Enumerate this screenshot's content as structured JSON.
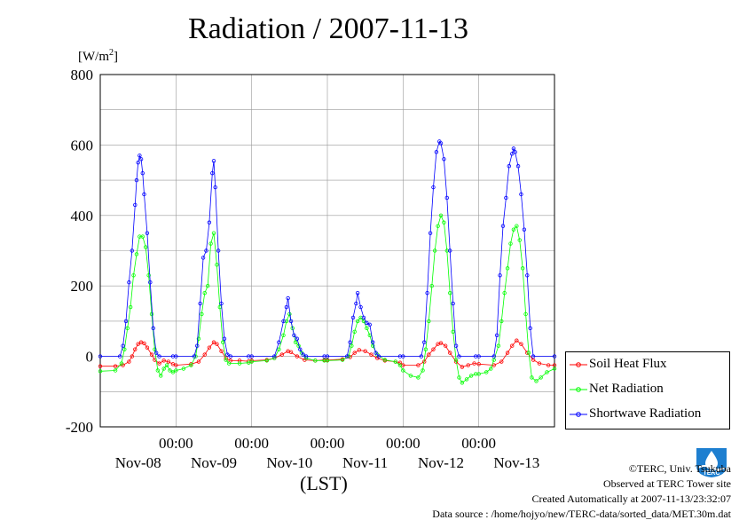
{
  "chart_data": {
    "type": "line",
    "title": "Radiation / 2007-11-13",
    "ylabel_unit": "[W/m2]",
    "xlabel": "(LST)",
    "ylim": [
      -200,
      800
    ],
    "yticks": [
      "800",
      "600",
      "400",
      "200",
      "0",
      "-200"
    ],
    "xticks_time": [
      "00:00",
      "00:00",
      "00:00",
      "00:00",
      "00:00"
    ],
    "xticks_date": [
      "Nov-08",
      "Nov-09",
      "Nov-10",
      "Nov-11",
      "Nov-12",
      "Nov-13"
    ],
    "grid": true,
    "legend_position": "bottom-right, outside plot",
    "series": [
      {
        "name": "Soil Heat Flux",
        "color": "#ff0000",
        "points": [
          [
            0.0,
            -28
          ],
          [
            0.2,
            -28
          ],
          [
            0.3,
            -25
          ],
          [
            0.38,
            -15
          ],
          [
            0.42,
            0
          ],
          [
            0.46,
            20
          ],
          [
            0.5,
            35
          ],
          [
            0.54,
            40
          ],
          [
            0.58,
            37
          ],
          [
            0.62,
            25
          ],
          [
            0.68,
            5
          ],
          [
            0.72,
            -10
          ],
          [
            0.78,
            -20
          ],
          [
            0.84,
            -12
          ],
          [
            0.9,
            -15
          ],
          [
            0.96,
            -22
          ],
          [
            1.0,
            -25
          ],
          [
            1.2,
            -22
          ],
          [
            1.3,
            -15
          ],
          [
            1.38,
            5
          ],
          [
            1.44,
            25
          ],
          [
            1.5,
            40
          ],
          [
            1.54,
            35
          ],
          [
            1.6,
            15
          ],
          [
            1.66,
            -5
          ],
          [
            1.72,
            -12
          ],
          [
            1.84,
            -12
          ],
          [
            1.96,
            -14
          ],
          [
            2.0,
            -12
          ],
          [
            2.2,
            -10
          ],
          [
            2.3,
            -5
          ],
          [
            2.4,
            5
          ],
          [
            2.48,
            15
          ],
          [
            2.52,
            12
          ],
          [
            2.6,
            0
          ],
          [
            2.7,
            -10
          ],
          [
            2.84,
            -12
          ],
          [
            2.96,
            -10
          ],
          [
            3.0,
            -10
          ],
          [
            3.2,
            -8
          ],
          [
            3.3,
            -2
          ],
          [
            3.36,
            10
          ],
          [
            3.42,
            18
          ],
          [
            3.5,
            15
          ],
          [
            3.58,
            5
          ],
          [
            3.66,
            -5
          ],
          [
            3.76,
            -12
          ],
          [
            3.9,
            -15
          ],
          [
            3.96,
            -18
          ],
          [
            4.0,
            -25
          ],
          [
            4.2,
            -25
          ],
          [
            4.28,
            -15
          ],
          [
            4.34,
            5
          ],
          [
            4.4,
            20
          ],
          [
            4.46,
            35
          ],
          [
            4.5,
            38
          ],
          [
            4.56,
            30
          ],
          [
            4.62,
            10
          ],
          [
            4.7,
            -15
          ],
          [
            4.78,
            -30
          ],
          [
            4.86,
            -25
          ],
          [
            4.94,
            -20
          ],
          [
            5.0,
            -22
          ],
          [
            5.2,
            -25
          ],
          [
            5.3,
            -15
          ],
          [
            5.38,
            10
          ],
          [
            5.44,
            30
          ],
          [
            5.5,
            45
          ],
          [
            5.56,
            35
          ],
          [
            5.64,
            10
          ],
          [
            5.72,
            -10
          ],
          [
            5.8,
            -20
          ],
          [
            5.92,
            -25
          ],
          [
            6.0,
            -25
          ]
        ]
      },
      {
        "name": "Net Radiation",
        "color": "#00ff00",
        "points": [
          [
            0.0,
            -42
          ],
          [
            0.2,
            -40
          ],
          [
            0.28,
            -20
          ],
          [
            0.32,
            20
          ],
          [
            0.36,
            80
          ],
          [
            0.4,
            140
          ],
          [
            0.44,
            230
          ],
          [
            0.48,
            290
          ],
          [
            0.52,
            340
          ],
          [
            0.56,
            340
          ],
          [
            0.6,
            310
          ],
          [
            0.64,
            230
          ],
          [
            0.68,
            120
          ],
          [
            0.72,
            20
          ],
          [
            0.76,
            -40
          ],
          [
            0.8,
            -55
          ],
          [
            0.84,
            -35
          ],
          [
            0.88,
            -25
          ],
          [
            0.92,
            -40
          ],
          [
            0.96,
            -45
          ],
          [
            1.0,
            -40
          ],
          [
            1.1,
            -35
          ],
          [
            1.2,
            -25
          ],
          [
            1.26,
            0
          ],
          [
            1.3,
            50
          ],
          [
            1.34,
            120
          ],
          [
            1.38,
            180
          ],
          [
            1.42,
            200
          ],
          [
            1.46,
            320
          ],
          [
            1.5,
            350
          ],
          [
            1.54,
            260
          ],
          [
            1.58,
            140
          ],
          [
            1.62,
            40
          ],
          [
            1.66,
            -10
          ],
          [
            1.7,
            -20
          ],
          [
            1.84,
            -20
          ],
          [
            1.96,
            -18
          ],
          [
            2.0,
            -15
          ],
          [
            2.2,
            -12
          ],
          [
            2.3,
            -5
          ],
          [
            2.36,
            20
          ],
          [
            2.42,
            60
          ],
          [
            2.46,
            100
          ],
          [
            2.5,
            120
          ],
          [
            2.54,
            80
          ],
          [
            2.58,
            40
          ],
          [
            2.62,
            30
          ],
          [
            2.66,
            10
          ],
          [
            2.72,
            -5
          ],
          [
            2.84,
            -12
          ],
          [
            2.96,
            -12
          ],
          [
            3.0,
            -12
          ],
          [
            3.2,
            -10
          ],
          [
            3.28,
            0
          ],
          [
            3.32,
            30
          ],
          [
            3.36,
            70
          ],
          [
            3.4,
            100
          ],
          [
            3.44,
            110
          ],
          [
            3.48,
            100
          ],
          [
            3.52,
            80
          ],
          [
            3.56,
            60
          ],
          [
            3.6,
            30
          ],
          [
            3.66,
            5
          ],
          [
            3.76,
            -10
          ],
          [
            3.9,
            -15
          ],
          [
            3.96,
            -25
          ],
          [
            4.0,
            -40
          ],
          [
            4.1,
            -55
          ],
          [
            4.2,
            -60
          ],
          [
            4.26,
            -40
          ],
          [
            4.3,
            20
          ],
          [
            4.34,
            100
          ],
          [
            4.38,
            200
          ],
          [
            4.42,
            300
          ],
          [
            4.46,
            370
          ],
          [
            4.5,
            400
          ],
          [
            4.54,
            380
          ],
          [
            4.58,
            300
          ],
          [
            4.62,
            180
          ],
          [
            4.66,
            70
          ],
          [
            4.7,
            -10
          ],
          [
            4.74,
            -60
          ],
          [
            4.78,
            -75
          ],
          [
            4.84,
            -65
          ],
          [
            4.9,
            -55
          ],
          [
            4.96,
            -50
          ],
          [
            5.0,
            -50
          ],
          [
            5.1,
            -45
          ],
          [
            5.16,
            -35
          ],
          [
            5.2,
            -10
          ],
          [
            5.26,
            30
          ],
          [
            5.3,
            100
          ],
          [
            5.34,
            180
          ],
          [
            5.38,
            250
          ],
          [
            5.42,
            320
          ],
          [
            5.46,
            360
          ],
          [
            5.5,
            370
          ],
          [
            5.54,
            330
          ],
          [
            5.58,
            250
          ],
          [
            5.62,
            120
          ],
          [
            5.66,
            10
          ],
          [
            5.7,
            -60
          ],
          [
            5.76,
            -70
          ],
          [
            5.82,
            -60
          ],
          [
            5.9,
            -45
          ],
          [
            6.0,
            -35
          ]
        ]
      },
      {
        "name": "Shortwave Radiation",
        "color": "#0000ff",
        "points": [
          [
            0.0,
            0
          ],
          [
            0.26,
            0
          ],
          [
            0.3,
            30
          ],
          [
            0.34,
            100
          ],
          [
            0.38,
            210
          ],
          [
            0.42,
            300
          ],
          [
            0.46,
            430
          ],
          [
            0.48,
            500
          ],
          [
            0.5,
            550
          ],
          [
            0.52,
            570
          ],
          [
            0.54,
            560
          ],
          [
            0.56,
            520
          ],
          [
            0.58,
            460
          ],
          [
            0.62,
            350
          ],
          [
            0.66,
            210
          ],
          [
            0.7,
            80
          ],
          [
            0.74,
            10
          ],
          [
            0.78,
            0
          ],
          [
            0.96,
            0
          ],
          [
            1.0,
            0
          ],
          [
            1.24,
            0
          ],
          [
            1.28,
            30
          ],
          [
            1.32,
            150
          ],
          [
            1.36,
            280
          ],
          [
            1.4,
            300
          ],
          [
            1.44,
            380
          ],
          [
            1.48,
            520
          ],
          [
            1.5,
            555
          ],
          [
            1.52,
            480
          ],
          [
            1.56,
            300
          ],
          [
            1.6,
            150
          ],
          [
            1.64,
            50
          ],
          [
            1.68,
            5
          ],
          [
            1.72,
            0
          ],
          [
            1.96,
            0
          ],
          [
            2.0,
            0
          ],
          [
            2.3,
            0
          ],
          [
            2.36,
            40
          ],
          [
            2.42,
            100
          ],
          [
            2.46,
            140
          ],
          [
            2.48,
            165
          ],
          [
            2.52,
            100
          ],
          [
            2.56,
            60
          ],
          [
            2.6,
            50
          ],
          [
            2.64,
            20
          ],
          [
            2.68,
            5
          ],
          [
            2.72,
            0
          ],
          [
            2.96,
            0
          ],
          [
            3.0,
            0
          ],
          [
            3.26,
            0
          ],
          [
            3.3,
            40
          ],
          [
            3.34,
            110
          ],
          [
            3.38,
            150
          ],
          [
            3.4,
            180
          ],
          [
            3.44,
            140
          ],
          [
            3.48,
            110
          ],
          [
            3.52,
            95
          ],
          [
            3.56,
            90
          ],
          [
            3.6,
            40
          ],
          [
            3.64,
            10
          ],
          [
            3.68,
            0
          ],
          [
            3.96,
            0
          ],
          [
            4.0,
            0
          ],
          [
            4.24,
            0
          ],
          [
            4.28,
            40
          ],
          [
            4.32,
            180
          ],
          [
            4.36,
            350
          ],
          [
            4.4,
            480
          ],
          [
            4.44,
            580
          ],
          [
            4.48,
            610
          ],
          [
            4.5,
            605
          ],
          [
            4.54,
            560
          ],
          [
            4.58,
            450
          ],
          [
            4.62,
            300
          ],
          [
            4.66,
            150
          ],
          [
            4.7,
            30
          ],
          [
            4.74,
            0
          ],
          [
            4.96,
            0
          ],
          [
            5.0,
            0
          ],
          [
            5.2,
            0
          ],
          [
            5.24,
            60
          ],
          [
            5.28,
            230
          ],
          [
            5.32,
            370
          ],
          [
            5.36,
            450
          ],
          [
            5.4,
            540
          ],
          [
            5.44,
            575
          ],
          [
            5.46,
            590
          ],
          [
            5.48,
            580
          ],
          [
            5.52,
            540
          ],
          [
            5.56,
            460
          ],
          [
            5.6,
            360
          ],
          [
            5.64,
            230
          ],
          [
            5.68,
            80
          ],
          [
            5.72,
            0
          ],
          [
            6.0,
            0
          ]
        ]
      }
    ]
  },
  "footer": {
    "copyright": "©TERC, Univ. Tsukuba",
    "observed": "Observed at TERC Tower site",
    "created": "Created Automatically at 2007-11-13/23:32:07",
    "source": "Data source : /home/hojyo/new/TERC-data/sorted_data/MET.30m.dat"
  },
  "logo": {
    "text": "TERC"
  }
}
